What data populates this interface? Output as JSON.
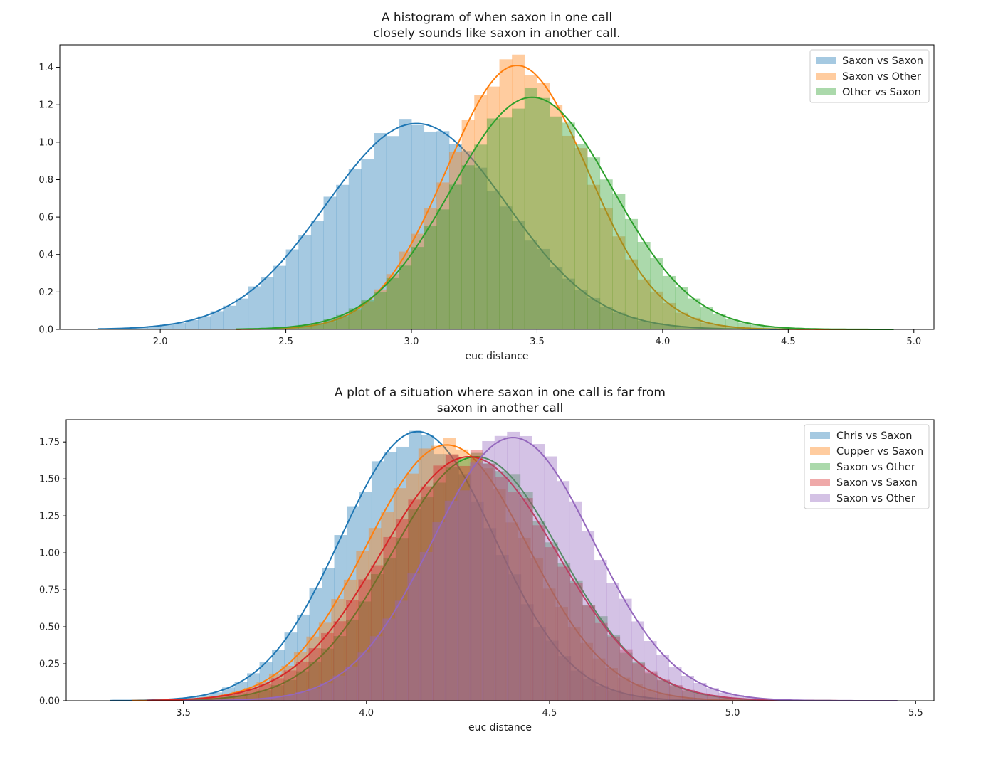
{
  "chart_data": [
    {
      "type": "histogram",
      "title": "A histogram of when saxon in one call\nclosely sounds like saxon in another call.",
      "xlabel": "euc distance",
      "ylabel": "",
      "xlim": [
        1.6,
        5.08
      ],
      "ylim": [
        0,
        1.52
      ],
      "xticks": [
        2.0,
        2.5,
        3.0,
        3.5,
        4.0,
        4.5,
        5.0
      ],
      "yticks": [
        0.0,
        0.2,
        0.4,
        0.6,
        0.8,
        1.0,
        1.2,
        1.4
      ],
      "xtick_format": 1,
      "ytick_format": 1,
      "grid": false,
      "legend": "top-right",
      "series": [
        {
          "name": "Saxon vs Saxon",
          "color": "#1f77b4",
          "mean": 3.02,
          "sd": 0.36,
          "peak": 1.1,
          "min": 1.75,
          "max": 4.5
        },
        {
          "name": "Saxon vs Other",
          "color": "#ff7f0e",
          "mean": 3.42,
          "sd": 0.28,
          "peak": 1.41,
          "min": 2.3,
          "max": 4.9
        },
        {
          "name": "Other vs Saxon",
          "color": "#2ca02c",
          "mean": 3.48,
          "sd": 0.32,
          "peak": 1.24,
          "min": 2.3,
          "max": 4.92
        }
      ]
    },
    {
      "type": "histogram",
      "title": "A plot of a situation where saxon in one call is far from\nsaxon in another call",
      "xlabel": "euc distance",
      "ylabel": "",
      "xlim": [
        3.18,
        5.55
      ],
      "ylim": [
        0,
        1.9
      ],
      "xticks": [
        3.5,
        4.0,
        4.5,
        5.0,
        5.5
      ],
      "yticks": [
        0.0,
        0.25,
        0.5,
        0.75,
        1.0,
        1.25,
        1.5,
        1.75
      ],
      "xtick_format": 1,
      "ytick_format": 2,
      "grid": false,
      "legend": "top-right",
      "series": [
        {
          "name": "Chris vs Saxon",
          "color": "#1f77b4",
          "mean": 4.14,
          "sd": 0.21,
          "peak": 1.82,
          "min": 3.3,
          "max": 5.1
        },
        {
          "name": "Cupper vs Saxon",
          "color": "#ff7f0e",
          "mean": 4.22,
          "sd": 0.22,
          "peak": 1.73,
          "min": 3.36,
          "max": 5.3
        },
        {
          "name": "Saxon vs Other",
          "color": "#2ca02c",
          "mean": 4.3,
          "sd": 0.23,
          "peak": 1.65,
          "min": 3.4,
          "max": 5.45
        },
        {
          "name": "Saxon vs Saxon",
          "color": "#d62728",
          "mean": 4.28,
          "sd": 0.24,
          "peak": 1.65,
          "min": 3.4,
          "max": 5.4
        },
        {
          "name": "Saxon vs Other",
          "color": "#9467bd",
          "mean": 4.4,
          "sd": 0.22,
          "peak": 1.78,
          "min": 3.5,
          "max": 5.45
        }
      ]
    }
  ]
}
